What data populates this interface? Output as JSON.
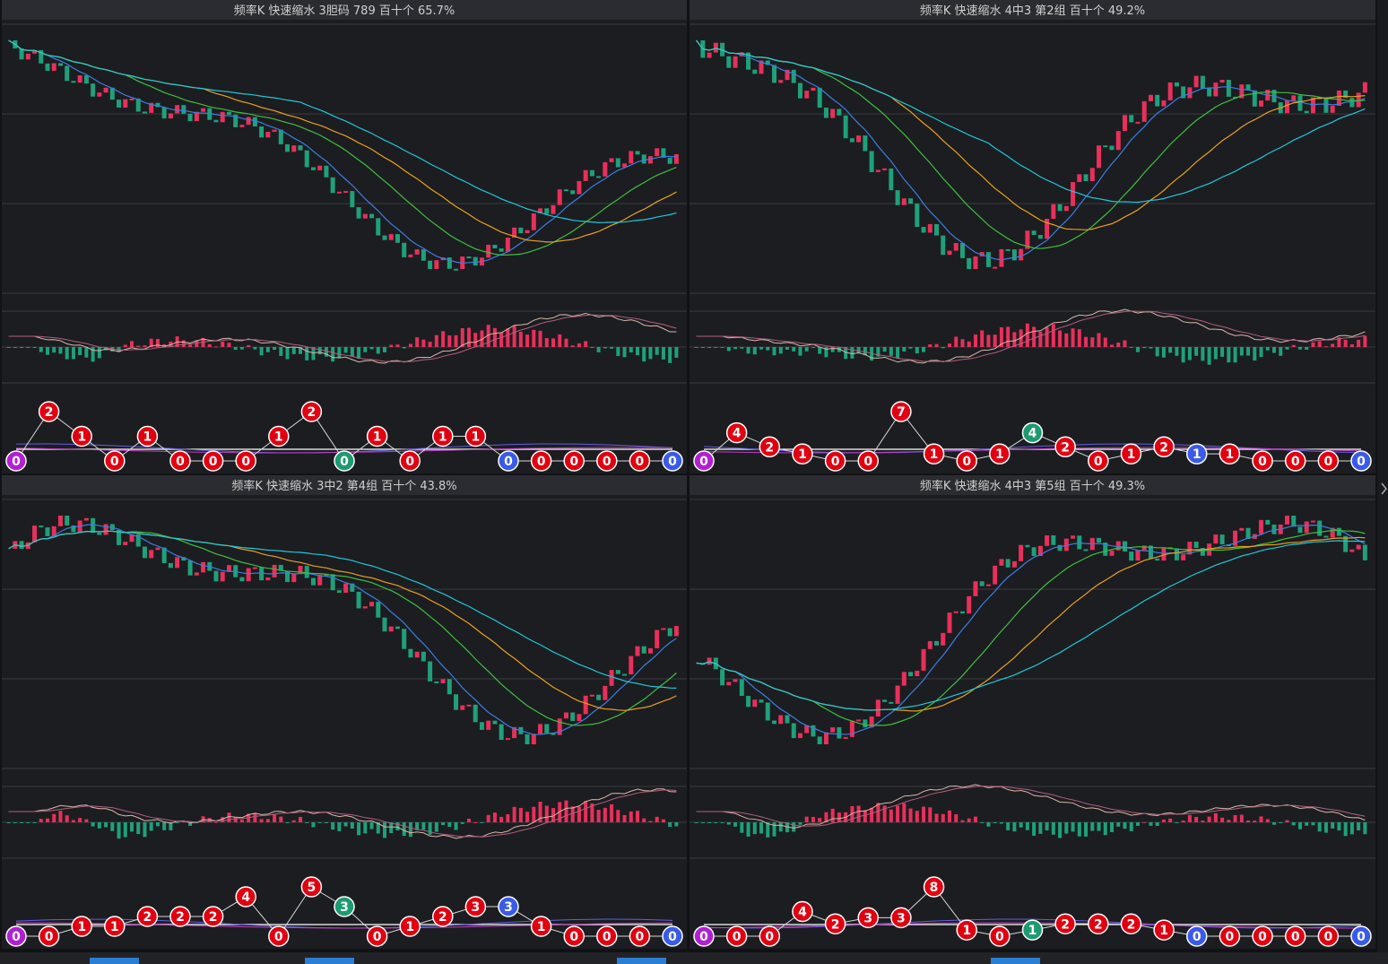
{
  "panels": [
    {
      "title": "频率K  快速缩水  3胆码 789  百十个  65.7%",
      "balls": [
        0,
        2,
        1,
        0,
        1,
        0,
        0,
        0,
        1,
        2,
        0,
        1,
        0,
        1,
        1,
        0,
        0,
        0,
        0,
        0,
        0
      ]
    },
    {
      "title": "频率K  快速缩水  4中3 第2组  百十个  49.2%",
      "balls": [
        0,
        4,
        2,
        1,
        0,
        0,
        7,
        1,
        0,
        1,
        4,
        2,
        0,
        1,
        2,
        1,
        1,
        0,
        0,
        0,
        0
      ]
    },
    {
      "title": "频率K  快速缩水  3中2 第4组  百十个  43.8%",
      "balls": [
        0,
        0,
        1,
        1,
        2,
        2,
        2,
        4,
        0,
        5,
        3,
        0,
        1,
        2,
        3,
        3,
        1,
        0,
        0,
        0,
        0
      ]
    },
    {
      "title": "频率K  快速缩水  4中3 第5组  百十个  49.3%",
      "balls": [
        0,
        0,
        0,
        4,
        2,
        3,
        3,
        8,
        1,
        0,
        1,
        2,
        2,
        2,
        1,
        0,
        0,
        0,
        0,
        0,
        0
      ]
    }
  ]
}
